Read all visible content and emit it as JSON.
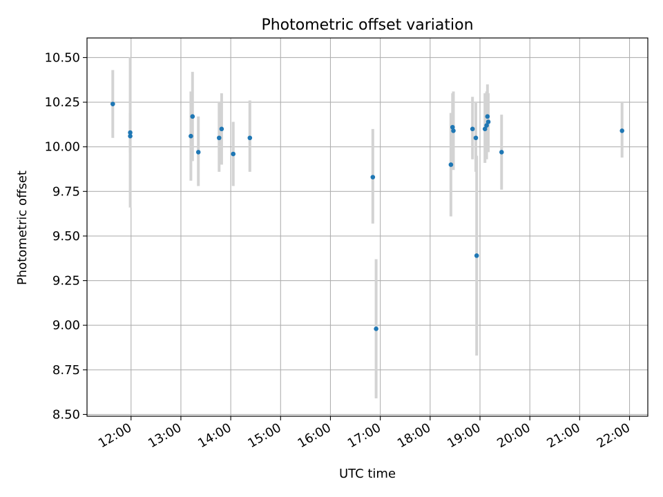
{
  "chart_data": {
    "type": "scatter",
    "title": "Photometric offset variation",
    "xlabel": "UTC time",
    "ylabel": "Photometric offset",
    "xlim": [
      "11:07",
      "22:22"
    ],
    "ylim": [
      8.49,
      10.61
    ],
    "x_ticks": [
      "12:00",
      "13:00",
      "14:00",
      "15:00",
      "16:00",
      "17:00",
      "18:00",
      "19:00",
      "20:00",
      "21:00",
      "22:00"
    ],
    "y_ticks": [
      "8.50",
      "8.75",
      "9.00",
      "9.25",
      "9.50",
      "9.75",
      "10.00",
      "10.25",
      "10.50"
    ],
    "grid": true,
    "colors": {
      "point": "#1f77b4",
      "errorbar": "#d3d3d3",
      "grid": "#b0b0b0",
      "axes": "#000000"
    },
    "series": [
      {
        "points": [
          {
            "x": "11:38",
            "y": 10.24,
            "ylow": 10.05,
            "yhigh": 10.43
          },
          {
            "x": "11:59",
            "y": 10.08,
            "ylow": 9.97,
            "yhigh": 10.19
          },
          {
            "x": "11:59",
            "y": 10.06,
            "ylow": 9.66,
            "yhigh": 10.5
          },
          {
            "x": "13:12",
            "y": 10.06,
            "ylow": 9.81,
            "yhigh": 10.31
          },
          {
            "x": "13:14",
            "y": 10.17,
            "ylow": 9.92,
            "yhigh": 10.42
          },
          {
            "x": "13:21",
            "y": 9.97,
            "ylow": 9.78,
            "yhigh": 10.17
          },
          {
            "x": "13:46",
            "y": 10.05,
            "ylow": 9.86,
            "yhigh": 10.25
          },
          {
            "x": "13:49",
            "y": 10.1,
            "ylow": 9.9,
            "yhigh": 10.3
          },
          {
            "x": "14:03",
            "y": 9.96,
            "ylow": 9.78,
            "yhigh": 10.14
          },
          {
            "x": "14:23",
            "y": 10.05,
            "ylow": 9.86,
            "yhigh": 10.26
          },
          {
            "x": "16:51",
            "y": 9.83,
            "ylow": 9.57,
            "yhigh": 10.1
          },
          {
            "x": "16:55",
            "y": 8.98,
            "ylow": 8.59,
            "yhigh": 9.37
          },
          {
            "x": "18:25",
            "y": 9.9,
            "ylow": 9.61,
            "yhigh": 10.19
          },
          {
            "x": "18:27",
            "y": 10.11,
            "ylow": 9.92,
            "yhigh": 10.3
          },
          {
            "x": "18:28",
            "y": 10.09,
            "ylow": 9.87,
            "yhigh": 10.31
          },
          {
            "x": "18:51",
            "y": 10.1,
            "ylow": 9.93,
            "yhigh": 10.28
          },
          {
            "x": "18:55",
            "y": 10.05,
            "ylow": 9.86,
            "yhigh": 10.25
          },
          {
            "x": "18:56",
            "y": 9.39,
            "ylow": 8.83,
            "yhigh": 9.95
          },
          {
            "x": "19:06",
            "y": 10.1,
            "ylow": 9.91,
            "yhigh": 10.3
          },
          {
            "x": "19:08",
            "y": 10.12,
            "ylow": 9.93,
            "yhigh": 10.31
          },
          {
            "x": "19:09",
            "y": 10.17,
            "ylow": 9.98,
            "yhigh": 10.35
          },
          {
            "x": "19:10",
            "y": 10.14,
            "ylow": 9.97,
            "yhigh": 10.3
          },
          {
            "x": "19:26",
            "y": 9.97,
            "ylow": 9.76,
            "yhigh": 10.18
          },
          {
            "x": "21:51",
            "y": 10.09,
            "ylow": 9.94,
            "yhigh": 10.25
          }
        ]
      }
    ]
  }
}
